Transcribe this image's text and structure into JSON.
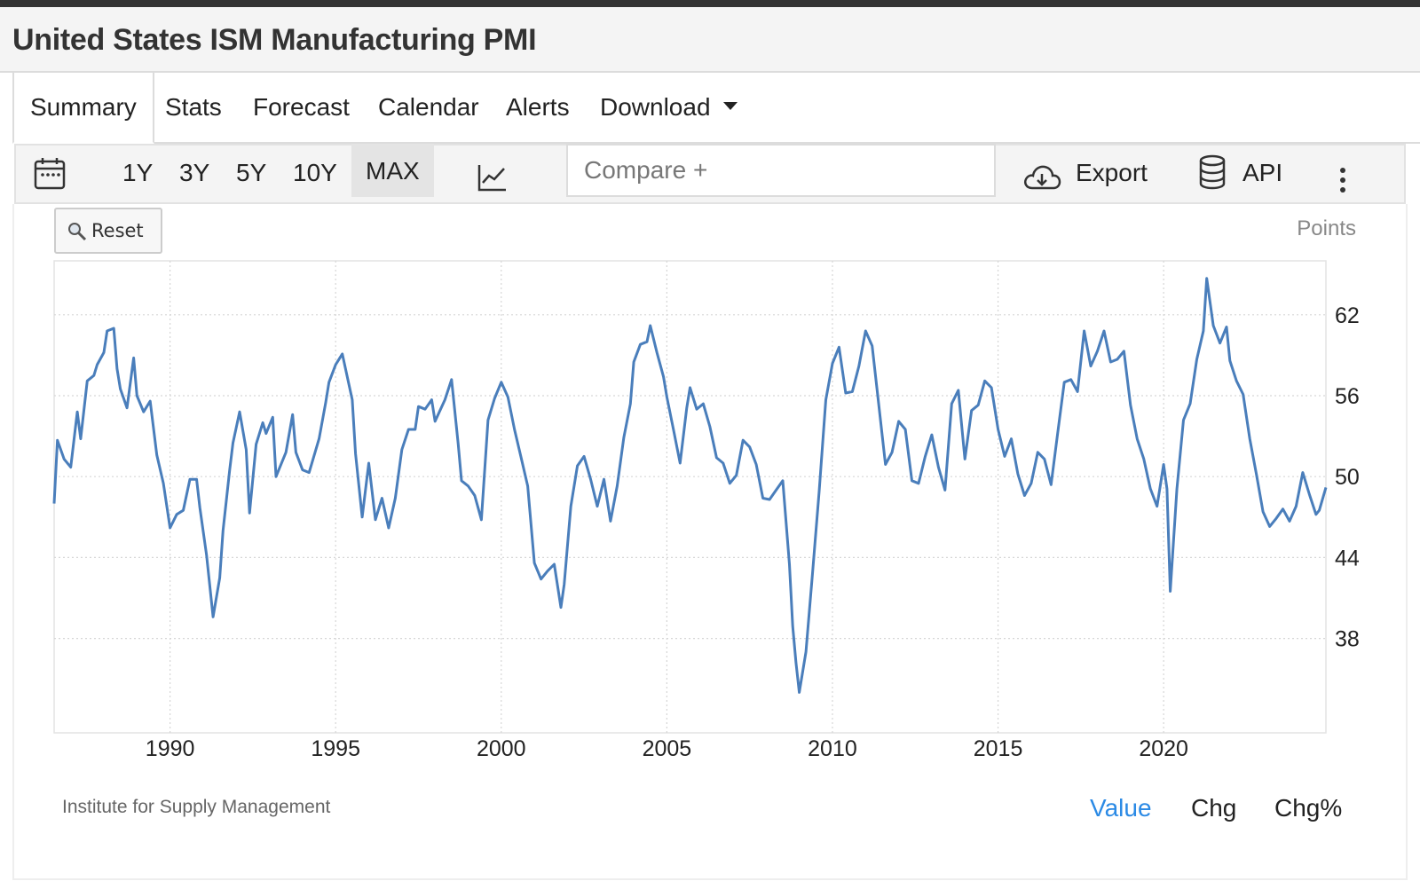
{
  "page": {
    "title": "United States ISM Manufacturing PMI"
  },
  "tabs": [
    {
      "label": "Summary",
      "active": true
    },
    {
      "label": "Stats"
    },
    {
      "label": "Forecast"
    },
    {
      "label": "Calendar"
    },
    {
      "label": "Alerts"
    },
    {
      "label": "Download"
    }
  ],
  "toolbar": {
    "ranges": [
      "1Y",
      "3Y",
      "5Y",
      "10Y",
      "MAX"
    ],
    "active_range": "MAX",
    "compare_placeholder": "Compare +",
    "export_label": "Export",
    "api_label": "API"
  },
  "chart": {
    "reset_label": "Reset",
    "units_label": "Points",
    "source": "Institute for Supply Management",
    "modes": [
      "Value",
      "Chg",
      "Chg%"
    ],
    "active_mode": "Value"
  },
  "colors": {
    "line": "#4a7ebb",
    "accent": "#2b8ae5"
  },
  "chart_data": {
    "type": "line",
    "title": "United States ISM Manufacturing PMI",
    "ylabel": "Points",
    "xlim": [
      1986.5,
      2024.9
    ],
    "ylim": [
      31,
      66
    ],
    "yticks": [
      38,
      44,
      50,
      56,
      62
    ],
    "xticks": [
      1990,
      1995,
      2000,
      2005,
      2010,
      2015,
      2020
    ],
    "grid": true,
    "legend": "none",
    "series": [
      {
        "points": [
          [
            1986.5,
            48.0
          ],
          [
            1986.6,
            52.7
          ],
          [
            1986.8,
            51.3
          ],
          [
            1987.0,
            50.7
          ],
          [
            1987.2,
            54.8
          ],
          [
            1987.3,
            52.8
          ],
          [
            1987.5,
            57.1
          ],
          [
            1987.7,
            57.5
          ],
          [
            1987.8,
            58.3
          ],
          [
            1988.0,
            59.2
          ],
          [
            1988.1,
            60.8
          ],
          [
            1988.3,
            61.0
          ],
          [
            1988.4,
            58.0
          ],
          [
            1988.5,
            56.5
          ],
          [
            1988.7,
            55.1
          ],
          [
            1988.9,
            58.8
          ],
          [
            1989.0,
            56.0
          ],
          [
            1989.2,
            54.8
          ],
          [
            1989.4,
            55.6
          ],
          [
            1989.6,
            51.6
          ],
          [
            1989.8,
            49.5
          ],
          [
            1990.0,
            46.2
          ],
          [
            1990.2,
            47.2
          ],
          [
            1990.4,
            47.5
          ],
          [
            1990.6,
            49.8
          ],
          [
            1990.8,
            49.8
          ],
          [
            1990.9,
            47.7
          ],
          [
            1991.1,
            44.2
          ],
          [
            1991.3,
            39.6
          ],
          [
            1991.5,
            42.5
          ],
          [
            1991.6,
            46.0
          ],
          [
            1991.8,
            50.5
          ],
          [
            1991.9,
            52.5
          ],
          [
            1992.1,
            54.8
          ],
          [
            1992.3,
            52.0
          ],
          [
            1992.4,
            47.3
          ],
          [
            1992.6,
            52.4
          ],
          [
            1992.8,
            54.0
          ],
          [
            1992.9,
            53.2
          ],
          [
            1993.1,
            54.4
          ],
          [
            1993.2,
            50.0
          ],
          [
            1993.5,
            51.8
          ],
          [
            1993.7,
            54.6
          ],
          [
            1993.8,
            51.8
          ],
          [
            1994.0,
            50.5
          ],
          [
            1994.2,
            50.3
          ],
          [
            1994.5,
            52.8
          ],
          [
            1994.7,
            55.5
          ],
          [
            1994.8,
            57.0
          ],
          [
            1995.0,
            58.3
          ],
          [
            1995.2,
            59.1
          ],
          [
            1995.5,
            55.7
          ],
          [
            1995.6,
            51.7
          ],
          [
            1995.8,
            47.0
          ],
          [
            1996.0,
            51.0
          ],
          [
            1996.2,
            46.8
          ],
          [
            1996.4,
            48.4
          ],
          [
            1996.6,
            46.2
          ],
          [
            1996.8,
            48.4
          ],
          [
            1997.0,
            52.0
          ],
          [
            1997.2,
            53.5
          ],
          [
            1997.4,
            53.5
          ],
          [
            1997.5,
            55.2
          ],
          [
            1997.7,
            55.0
          ],
          [
            1997.9,
            55.7
          ],
          [
            1998.0,
            54.1
          ],
          [
            1998.3,
            55.7
          ],
          [
            1998.5,
            57.2
          ],
          [
            1998.7,
            52.4
          ],
          [
            1998.8,
            49.7
          ],
          [
            1999.0,
            49.3
          ],
          [
            1999.2,
            48.6
          ],
          [
            1999.4,
            46.8
          ],
          [
            1999.6,
            54.2
          ],
          [
            1999.8,
            55.8
          ],
          [
            2000.0,
            57.0
          ],
          [
            2000.2,
            55.9
          ],
          [
            2000.4,
            53.5
          ],
          [
            2000.6,
            51.4
          ],
          [
            2000.8,
            49.3
          ],
          [
            2001.0,
            43.6
          ],
          [
            2001.2,
            42.4
          ],
          [
            2001.4,
            43.0
          ],
          [
            2001.6,
            43.5
          ],
          [
            2001.8,
            40.3
          ],
          [
            2001.9,
            42.0
          ],
          [
            2002.1,
            47.8
          ],
          [
            2002.3,
            50.8
          ],
          [
            2002.5,
            51.5
          ],
          [
            2002.7,
            49.8
          ],
          [
            2002.9,
            47.8
          ],
          [
            2003.1,
            49.8
          ],
          [
            2003.3,
            46.7
          ],
          [
            2003.5,
            49.3
          ],
          [
            2003.7,
            52.9
          ],
          [
            2003.9,
            55.4
          ],
          [
            2004.0,
            58.5
          ],
          [
            2004.2,
            59.8
          ],
          [
            2004.4,
            60.0
          ],
          [
            2004.5,
            61.2
          ],
          [
            2004.7,
            59.2
          ],
          [
            2004.9,
            57.4
          ],
          [
            2005.0,
            55.9
          ],
          [
            2005.2,
            53.5
          ],
          [
            2005.4,
            51.0
          ],
          [
            2005.6,
            55.1
          ],
          [
            2005.7,
            56.6
          ],
          [
            2005.9,
            55.0
          ],
          [
            2006.1,
            55.4
          ],
          [
            2006.3,
            53.7
          ],
          [
            2006.5,
            51.4
          ],
          [
            2006.7,
            51.0
          ],
          [
            2006.9,
            49.5
          ],
          [
            2007.1,
            50.1
          ],
          [
            2007.3,
            52.7
          ],
          [
            2007.5,
            52.2
          ],
          [
            2007.7,
            50.9
          ],
          [
            2007.9,
            48.4
          ],
          [
            2008.1,
            48.3
          ],
          [
            2008.3,
            49.0
          ],
          [
            2008.5,
            49.7
          ],
          [
            2008.7,
            43.5
          ],
          [
            2008.8,
            38.9
          ],
          [
            2008.9,
            36.2
          ],
          [
            2009.0,
            34.0
          ],
          [
            2009.2,
            37.0
          ],
          [
            2009.4,
            42.9
          ],
          [
            2009.6,
            48.9
          ],
          [
            2009.8,
            55.7
          ],
          [
            2010.0,
            58.4
          ],
          [
            2010.2,
            59.6
          ],
          [
            2010.4,
            56.2
          ],
          [
            2010.6,
            56.3
          ],
          [
            2010.8,
            58.2
          ],
          [
            2011.0,
            60.8
          ],
          [
            2011.2,
            59.7
          ],
          [
            2011.4,
            55.3
          ],
          [
            2011.6,
            50.9
          ],
          [
            2011.8,
            51.8
          ],
          [
            2012.0,
            54.1
          ],
          [
            2012.2,
            53.5
          ],
          [
            2012.4,
            49.7
          ],
          [
            2012.6,
            49.5
          ],
          [
            2012.8,
            51.5
          ],
          [
            2013.0,
            53.1
          ],
          [
            2013.2,
            50.7
          ],
          [
            2013.4,
            49.0
          ],
          [
            2013.6,
            55.4
          ],
          [
            2013.8,
            56.4
          ],
          [
            2014.0,
            51.3
          ],
          [
            2014.2,
            54.9
          ],
          [
            2014.4,
            55.3
          ],
          [
            2014.6,
            57.1
          ],
          [
            2014.8,
            56.6
          ],
          [
            2015.0,
            53.5
          ],
          [
            2015.2,
            51.5
          ],
          [
            2015.4,
            52.8
          ],
          [
            2015.6,
            50.2
          ],
          [
            2015.8,
            48.6
          ],
          [
            2016.0,
            49.5
          ],
          [
            2016.2,
            51.8
          ],
          [
            2016.4,
            51.3
          ],
          [
            2016.6,
            49.4
          ],
          [
            2016.8,
            53.2
          ],
          [
            2017.0,
            57.0
          ],
          [
            2017.2,
            57.2
          ],
          [
            2017.4,
            56.3
          ],
          [
            2017.6,
            60.8
          ],
          [
            2017.8,
            58.2
          ],
          [
            2018.0,
            59.3
          ],
          [
            2018.2,
            60.8
          ],
          [
            2018.4,
            58.5
          ],
          [
            2018.6,
            58.7
          ],
          [
            2018.8,
            59.3
          ],
          [
            2019.0,
            55.3
          ],
          [
            2019.2,
            52.8
          ],
          [
            2019.4,
            51.3
          ],
          [
            2019.6,
            49.1
          ],
          [
            2019.8,
            47.8
          ],
          [
            2020.0,
            50.9
          ],
          [
            2020.1,
            49.1
          ],
          [
            2020.2,
            41.5
          ],
          [
            2020.4,
            49.1
          ],
          [
            2020.6,
            54.2
          ],
          [
            2020.8,
            55.4
          ],
          [
            2021.0,
            58.7
          ],
          [
            2021.2,
            60.8
          ],
          [
            2021.3,
            64.7
          ],
          [
            2021.5,
            61.2
          ],
          [
            2021.7,
            59.9
          ],
          [
            2021.9,
            61.1
          ],
          [
            2022.0,
            58.6
          ],
          [
            2022.2,
            57.1
          ],
          [
            2022.4,
            56.1
          ],
          [
            2022.6,
            52.8
          ],
          [
            2022.8,
            50.2
          ],
          [
            2023.0,
            47.4
          ],
          [
            2023.2,
            46.3
          ],
          [
            2023.4,
            46.9
          ],
          [
            2023.6,
            47.6
          ],
          [
            2023.8,
            46.7
          ],
          [
            2024.0,
            47.8
          ],
          [
            2024.2,
            50.3
          ],
          [
            2024.4,
            48.7
          ],
          [
            2024.6,
            47.2
          ],
          [
            2024.7,
            47.5
          ],
          [
            2024.9,
            49.2
          ]
        ]
      }
    ]
  }
}
